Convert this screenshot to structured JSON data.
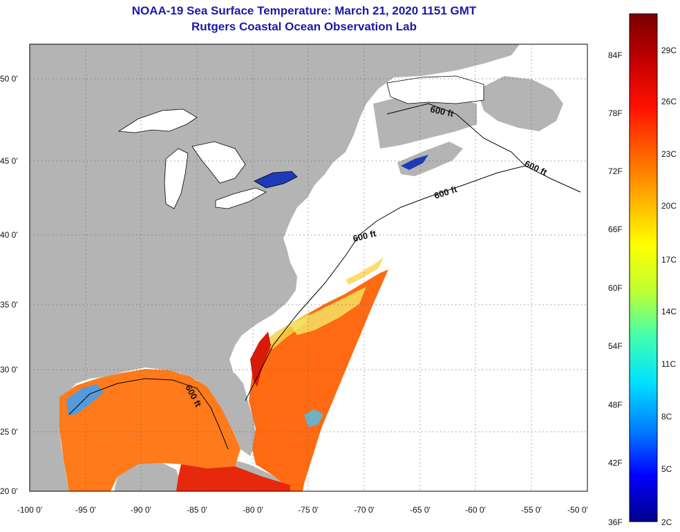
{
  "title": {
    "line1": "NOAA-19 Sea Surface Temperature:  March 21, 2020 1151 GMT",
    "line2": "Rutgers Coastal Ocean Observation Lab"
  },
  "map": {
    "lat_labels": [
      "50 0'",
      "45 0'",
      "40 0'",
      "35 0'",
      "30 0'",
      "25 0'",
      "20 0'"
    ],
    "lon_labels": [
      "-100 0'",
      "-95 0'",
      "-90 0'",
      "-85 0'",
      "-80 0'",
      "-75 0'",
      "-70 0'",
      "-65 0'",
      "-60 0'",
      "-55 0'",
      "-50 0'"
    ],
    "isobath_label": "600 ft",
    "colors": {
      "land": "#b4b4b4",
      "no_data": "#ffffff",
      "lakes": "#ffffff",
      "coastline": "#000000"
    }
  },
  "colorbar": {
    "fahrenheit": [
      "84F",
      "78F",
      "72F",
      "66F",
      "60F",
      "54F",
      "48F",
      "42F",
      "36F"
    ],
    "celsius": [
      "29C",
      "26C",
      "23C",
      "20C",
      "17C",
      "14C",
      "11C",
      "8C",
      "5C",
      "2C"
    ],
    "gradient": [
      "#00008b",
      "#0000ff",
      "#0080ff",
      "#00e0ff",
      "#40ffb0",
      "#c0ff30",
      "#ffff00",
      "#ffb000",
      "#ff6000",
      "#ff1000",
      "#c00000",
      "#7a0000"
    ]
  }
}
